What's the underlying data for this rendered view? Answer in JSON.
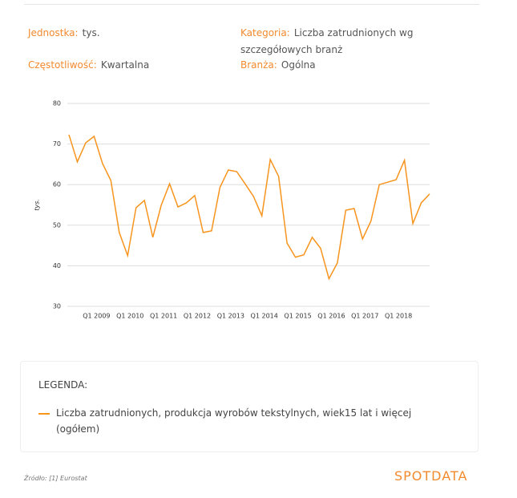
{
  "header": {
    "unit_label": "Jednostka:",
    "unit": "tys.",
    "category_label": "Kategoria:",
    "category": "Liczba zatrudnionych wg szczegółowych branż",
    "frequency_label": "Częstotliwość:",
    "frequency": "Kwartalna",
    "branch_label": "Branża:",
    "branch": "Ogólna"
  },
  "chart_data": {
    "type": "line",
    "ylabel": "tys.",
    "categories": [
      null,
      null,
      null,
      "Q1 2009",
      null,
      null,
      null,
      "Q1 2010",
      null,
      null,
      null,
      "Q1 2011",
      null,
      null,
      null,
      "Q1 2012",
      null,
      null,
      null,
      "Q1 2013",
      null,
      null,
      null,
      "Q1 2014",
      null,
      null,
      null,
      "Q1 2015",
      null,
      null,
      null,
      "Q1 2016",
      null,
      null,
      null,
      "Q1 2017",
      null,
      null,
      null,
      "Q1 2018",
      null,
      null,
      null,
      null
    ],
    "series": [
      {
        "name": "Liczba zatrudnionych, produkcja wyrobów tekstylnych, wiek15 lat i więcej (ogółem)",
        "color": "#f7941d",
        "values": [
          72.3,
          65.6,
          70.3,
          71.9,
          65.2,
          61,
          48.2,
          42.5,
          54.3,
          56.1,
          47,
          54.9,
          60.2,
          54.5,
          55.5,
          57.3,
          48.2,
          48.6,
          59.3,
          63.6,
          63.2,
          60.2,
          57.1,
          52.3,
          66.2,
          62,
          45.6,
          42.1,
          42.7,
          47,
          44.3,
          36.8,
          40.7,
          53.7,
          54.1,
          46.6,
          51,
          60,
          60.6,
          61.2,
          66,
          50.4,
          55.5,
          57.7
        ]
      }
    ],
    "ylim": [
      30,
      80
    ],
    "yticks": [
      30,
      40,
      50,
      60,
      70,
      80
    ],
    "grid": true
  },
  "legend_title": "LEGENDA:",
  "source": "Źródło: [1] Eurostat",
  "logo": "SPOTDATA"
}
